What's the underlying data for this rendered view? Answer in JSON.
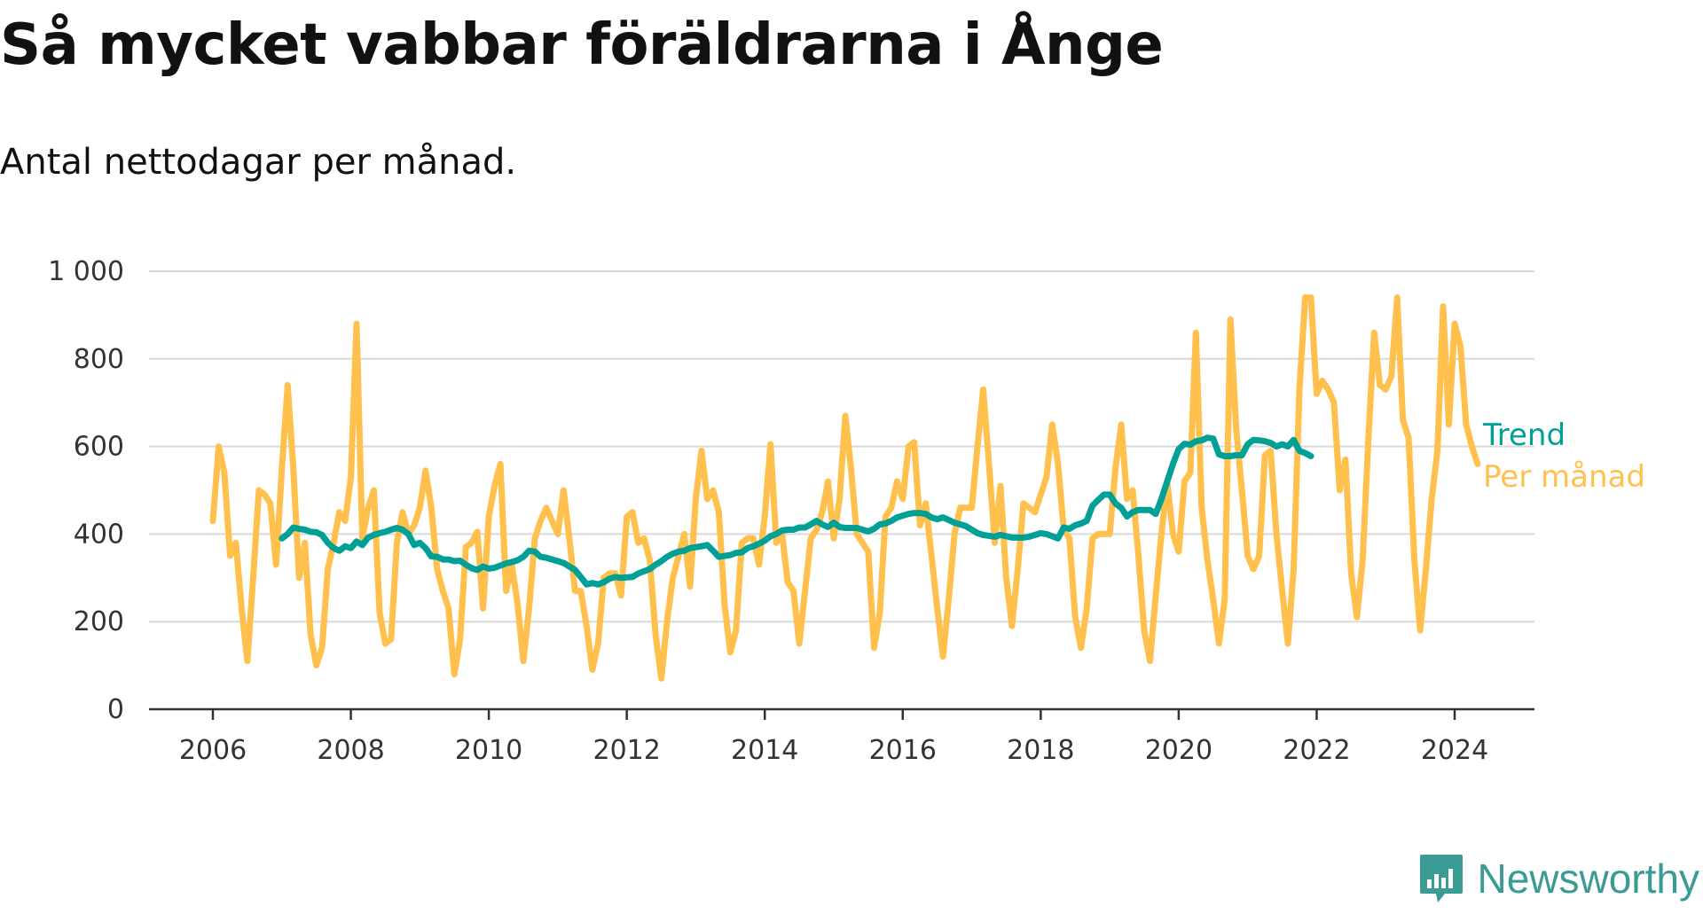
{
  "title": "Så mycket vabbar föräldrarna i Ånge",
  "subtitle": "Antal nettodagar per månad.",
  "brand": {
    "name": "Newsworthy",
    "icon": "bar-chart-speech-bubble-icon",
    "color": "#3a9b95"
  },
  "chart_data": {
    "type": "line",
    "x_label": "",
    "y_label": "",
    "ylim": [
      0,
      1000
    ],
    "y_ticks": [
      0,
      200,
      400,
      600,
      800,
      1000
    ],
    "y_tick_labels": [
      "0",
      "200",
      "400",
      "600",
      "800",
      "1 000"
    ],
    "x_ticks": [
      2006,
      2008,
      2010,
      2012,
      2014,
      2016,
      2018,
      2020,
      2022,
      2024
    ],
    "x_tick_labels": [
      "2006",
      "2008",
      "2010",
      "2012",
      "2014",
      "2016",
      "2018",
      "2020",
      "2022",
      "2024"
    ],
    "xlim": [
      "2006-01",
      "2024-05"
    ],
    "grid": "horizontal",
    "legend": "direct labels at line ends",
    "series": [
      {
        "name": "Per månad",
        "color": "#ffc04d",
        "start": "2006-01",
        "values": [
          430,
          600,
          540,
          350,
          380,
          230,
          110,
          300,
          500,
          490,
          470,
          330,
          550,
          740,
          550,
          300,
          380,
          170,
          100,
          140,
          320,
          380,
          450,
          430,
          530,
          880,
          390,
          460,
          500,
          220,
          150,
          160,
          380,
          450,
          400,
          420,
          460,
          545,
          460,
          320,
          270,
          230,
          80,
          160,
          370,
          380,
          405,
          230,
          440,
          510,
          560,
          270,
          330,
          240,
          110,
          230,
          390,
          430,
          460,
          430,
          400,
          500,
          390,
          270,
          270,
          190,
          90,
          150,
          300,
          310,
          310,
          260,
          440,
          450,
          380,
          390,
          340,
          170,
          70,
          200,
          300,
          350,
          400,
          280,
          480,
          590,
          480,
          500,
          450,
          240,
          130,
          180,
          380,
          390,
          390,
          330,
          440,
          605,
          380,
          400,
          290,
          270,
          150,
          270,
          390,
          410,
          450,
          520,
          390,
          480,
          670,
          550,
          400,
          380,
          360,
          140,
          220,
          440,
          460,
          520,
          480,
          600,
          610,
          420,
          470,
          350,
          230,
          120,
          250,
          400,
          460,
          460,
          460,
          600,
          730,
          560,
          380,
          510,
          300,
          190,
          320,
          470,
          460,
          450,
          490,
          530,
          650,
          560,
          410,
          390,
          210,
          140,
          230,
          390,
          400,
          400,
          400,
          550,
          650,
          480,
          500,
          350,
          180,
          110,
          260,
          400,
          520,
          400,
          360,
          520,
          540,
          860,
          460,
          340,
          250,
          150,
          250,
          890,
          640,
          500,
          350,
          320,
          350,
          580,
          590,
          400,
          270,
          150,
          320,
          730,
          940,
          940,
          720,
          750,
          730,
          700,
          500,
          570,
          310,
          210,
          340,
          620,
          860,
          740,
          730,
          760,
          940,
          660,
          620,
          340,
          180,
          320,
          480,
          590,
          920,
          650,
          880,
          830,
          650,
          600,
          560
        ]
      },
      {
        "name": "Trend",
        "color": "#00a096",
        "start": "2007-01",
        "values": [
          390,
          400,
          415,
          412,
          410,
          405,
          404,
          398,
          380,
          368,
          362,
          372,
          368,
          383,
          375,
          392,
          398,
          402,
          405,
          410,
          414,
          410,
          400,
          375,
          380,
          368,
          349,
          348,
          342,
          342,
          338,
          339,
          330,
          322,
          318,
          326,
          321,
          323,
          328,
          333,
          336,
          340,
          348,
          362,
          360,
          348,
          346,
          342,
          338,
          334,
          326,
          318,
          302,
          285,
          288,
          285,
          290,
          298,
          302,
          300,
          301,
          302,
          310,
          315,
          320,
          330,
          338,
          348,
          355,
          360,
          362,
          368,
          370,
          372,
          375,
          362,
          348,
          350,
          352,
          357,
          358,
          368,
          372,
          378,
          385,
          395,
          400,
          408,
          410,
          410,
          415,
          415,
          422,
          430,
          422,
          416,
          426,
          416,
          414,
          414,
          414,
          410,
          406,
          412,
          422,
          424,
          430,
          438,
          442,
          446,
          448,
          448,
          446,
          438,
          434,
          438,
          432,
          426,
          422,
          418,
          410,
          402,
          398,
          396,
          394,
          398,
          395,
          392,
          392,
          392,
          394,
          398,
          402,
          400,
          395,
          390,
          415,
          412,
          420,
          424,
          430,
          465,
          478,
          490,
          490,
          470,
          460,
          440,
          450,
          455,
          455,
          455,
          446,
          480,
          520,
          560,
          594,
          606,
          604,
          612,
          614,
          620,
          618,
          582,
          578,
          578,
          580,
          580,
          605,
          615,
          614,
          612,
          608,
          600,
          605,
          600,
          615,
          590,
          585,
          578
        ]
      }
    ]
  }
}
